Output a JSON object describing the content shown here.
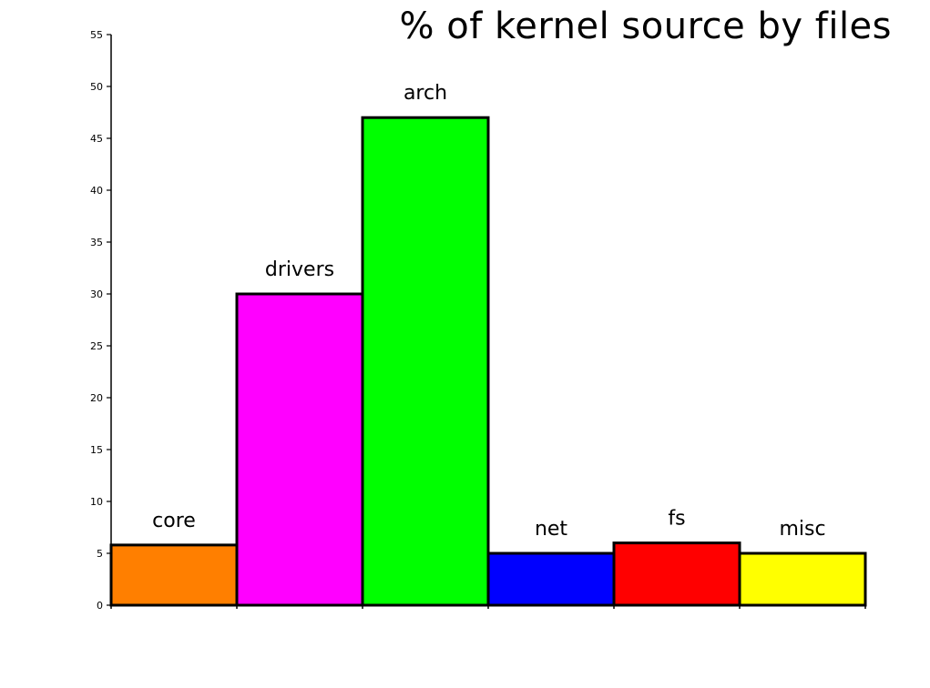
{
  "chart_data": {
    "type": "bar",
    "title": "% of kernel source by files",
    "xlabel": "",
    "ylabel": "",
    "ylim": [
      0,
      55
    ],
    "yticks": [
      0,
      5,
      10,
      15,
      20,
      25,
      30,
      35,
      40,
      45,
      50,
      55
    ],
    "grid": false,
    "categories": [
      "core",
      "drivers",
      "arch",
      "net",
      "fs",
      "misc"
    ],
    "values": [
      5.8,
      30,
      47,
      5,
      6,
      5
    ],
    "colors": [
      "#ff7f00",
      "#ff00ff",
      "#00ff00",
      "#0000ff",
      "#ff0000",
      "#ffff00"
    ]
  }
}
